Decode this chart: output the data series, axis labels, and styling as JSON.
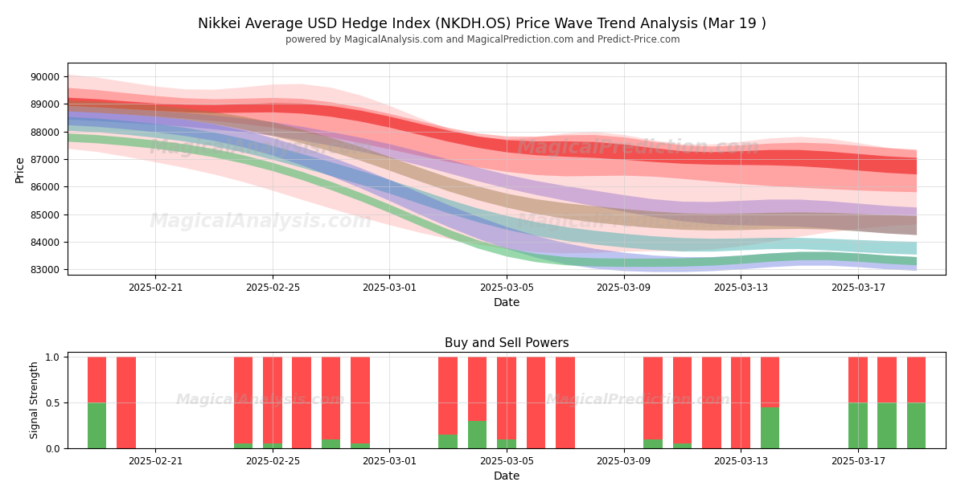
{
  "title": "Nikkei Average USD Hedge Index (NKDH.OS) Price Wave Trend Analysis (Mar 19 )",
  "subtitle": "powered by MagicalAnalysis.com and MagicalPrediction.com and Predict-Price.com",
  "xlabel": "Date",
  "ylabel": "Price",
  "ylabel2": "Signal Strength",
  "title2": "Buy and Sell Powers",
  "ylim": [
    82800,
    90500
  ],
  "background_color": "#ffffff",
  "grid_color": "#cccccc",
  "dates_n": 30,
  "date_start": "2025-02-18",
  "red_outer_upper": [
    90200,
    90000,
    89800,
    89600,
    89500,
    89400,
    89600,
    89800,
    89900,
    89700,
    89400,
    89000,
    88500,
    88000,
    87700,
    87500,
    87800,
    88000,
    88200,
    88000,
    87600,
    87400,
    87500,
    87600,
    87800,
    88000,
    87800,
    87600,
    87400,
    87200
  ],
  "red_outer_lower": [
    87500,
    87300,
    87100,
    86900,
    86700,
    86500,
    86200,
    85900,
    85500,
    85200,
    84900,
    84600,
    84300,
    84100,
    83900,
    83700,
    83600,
    83500,
    83600,
    83700,
    83700,
    83600,
    83700,
    83800,
    84000,
    84200,
    84400,
    84500,
    84600,
    84700
  ],
  "red_inner_upper": [
    89700,
    89500,
    89400,
    89300,
    89200,
    89100,
    89200,
    89300,
    89300,
    89100,
    88900,
    88700,
    88400,
    88100,
    87900,
    87700,
    87800,
    87900,
    88000,
    87900,
    87600,
    87400,
    87400,
    87500,
    87600,
    87700,
    87600,
    87500,
    87400,
    87300
  ],
  "red_inner_lower": [
    88800,
    88700,
    88600,
    88600,
    88500,
    88400,
    88300,
    88200,
    88000,
    87800,
    87600,
    87400,
    87100,
    86900,
    86700,
    86500,
    86400,
    86300,
    86400,
    86500,
    86400,
    86300,
    86200,
    86100,
    86000,
    86000,
    85900,
    85900,
    85800,
    85800
  ],
  "red_line_upper": [
    89300,
    89200,
    89100,
    89000,
    89000,
    88900,
    89000,
    89100,
    89100,
    89000,
    88800,
    88600,
    88300,
    88000,
    87800,
    87600,
    87600,
    87700,
    87700,
    87600,
    87400,
    87200,
    87200,
    87300,
    87400,
    87400,
    87300,
    87200,
    87100,
    87000
  ],
  "red_line_lower": [
    89000,
    88900,
    88800,
    88800,
    88700,
    88600,
    88700,
    88800,
    88700,
    88600,
    88400,
    88200,
    87900,
    87600,
    87400,
    87200,
    87100,
    87100,
    87100,
    87000,
    86900,
    86800,
    86800,
    86800,
    86800,
    86800,
    86700,
    86600,
    86500,
    86400
  ],
  "purple_upper": [
    89000,
    88900,
    88800,
    88800,
    88700,
    88600,
    88500,
    88400,
    88200,
    88000,
    87800,
    87600,
    87300,
    87000,
    86700,
    86400,
    86200,
    86000,
    85900,
    85700,
    85500,
    85400,
    85400,
    85500,
    85600,
    85600,
    85500,
    85400,
    85300,
    85200
  ],
  "purple_lower": [
    88500,
    88400,
    88300,
    88300,
    88200,
    88100,
    88000,
    87900,
    87700,
    87500,
    87300,
    87100,
    86800,
    86500,
    86200,
    85900,
    85700,
    85500,
    85300,
    85100,
    84900,
    84700,
    84600,
    84600,
    84600,
    84600,
    84500,
    84400,
    84300,
    84200
  ],
  "brown_upper": [
    89200,
    89100,
    89000,
    89000,
    88900,
    88700,
    88600,
    88400,
    88100,
    87800,
    87500,
    87100,
    86700,
    86300,
    86000,
    85700,
    85500,
    85400,
    85300,
    85200,
    85100,
    85000,
    85000,
    85000,
    85100,
    85100,
    85100,
    85000,
    85000,
    84900
  ],
  "brown_lower": [
    88800,
    88700,
    88600,
    88600,
    88500,
    88300,
    88100,
    87900,
    87600,
    87300,
    87000,
    86600,
    86200,
    85800,
    85500,
    85200,
    85000,
    84800,
    84700,
    84600,
    84500,
    84400,
    84400,
    84400,
    84500,
    84500,
    84500,
    84400,
    84300,
    84200
  ],
  "teal_upper": [
    88600,
    88500,
    88400,
    88300,
    88200,
    88000,
    87800,
    87500,
    87200,
    86900,
    86600,
    86300,
    85900,
    85500,
    85200,
    84900,
    84700,
    84500,
    84400,
    84300,
    84200,
    84100,
    84100,
    84100,
    84200,
    84200,
    84100,
    84100,
    84000,
    84000
  ],
  "teal_lower": [
    88100,
    88000,
    87900,
    87800,
    87700,
    87500,
    87300,
    87000,
    86700,
    86400,
    86100,
    85800,
    85400,
    85000,
    84700,
    84400,
    84200,
    84000,
    83900,
    83800,
    83700,
    83600,
    83600,
    83700,
    83800,
    83800,
    83700,
    83600,
    83600,
    83500
  ],
  "blue_upper": [
    88800,
    88700,
    88600,
    88600,
    88500,
    88300,
    88100,
    87800,
    87500,
    87100,
    86700,
    86300,
    85800,
    85300,
    84900,
    84500,
    84200,
    83900,
    83700,
    83600,
    83500,
    83400,
    83400,
    83500,
    83600,
    83700,
    83700,
    83600,
    83500,
    83400
  ],
  "blue_lower": [
    88300,
    88200,
    88100,
    88000,
    87900,
    87700,
    87500,
    87200,
    86800,
    86400,
    86000,
    85500,
    85000,
    84500,
    84100,
    83700,
    83400,
    83100,
    83000,
    82900,
    82900,
    82900,
    82900,
    83000,
    83100,
    83200,
    83200,
    83100,
    83000,
    82900
  ],
  "green_upper": [
    88000,
    87900,
    87800,
    87700,
    87600,
    87400,
    87200,
    86900,
    86600,
    86200,
    85800,
    85400,
    84900,
    84400,
    84000,
    83700,
    83500,
    83400,
    83400,
    83400,
    83400,
    83400,
    83400,
    83500,
    83600,
    83700,
    83700,
    83600,
    83500,
    83400
  ],
  "green_lower": [
    87700,
    87600,
    87500,
    87400,
    87300,
    87100,
    86900,
    86600,
    86300,
    85900,
    85500,
    85100,
    84600,
    84100,
    83700,
    83400,
    83200,
    83100,
    83100,
    83100,
    83100,
    83100,
    83100,
    83200,
    83300,
    83400,
    83400,
    83300,
    83200,
    83100
  ],
  "bar_dates": [
    "2025-02-19",
    "2025-02-20",
    "2025-02-24",
    "2025-02-25",
    "2025-02-26",
    "2025-02-27",
    "2025-02-28",
    "2025-03-03",
    "2025-03-04",
    "2025-03-05",
    "2025-03-06",
    "2025-03-07",
    "2025-03-10",
    "2025-03-11",
    "2025-03-12",
    "2025-03-13",
    "2025-03-14",
    "2025-03-17",
    "2025-03-18",
    "2025-03-19"
  ],
  "bar_green": [
    0.5,
    0.0,
    0.05,
    0.05,
    0.0,
    0.1,
    0.05,
    0.15,
    0.3,
    0.1,
    0.0,
    0.0,
    0.1,
    0.05,
    0.0,
    0.0,
    0.45,
    0.5,
    0.5,
    0.5
  ],
  "bar_red": [
    0.5,
    1.0,
    0.95,
    0.95,
    1.0,
    0.9,
    0.95,
    0.85,
    0.7,
    0.9,
    1.0,
    1.0,
    0.9,
    0.95,
    1.0,
    1.0,
    0.55,
    0.5,
    0.5,
    0.5
  ]
}
